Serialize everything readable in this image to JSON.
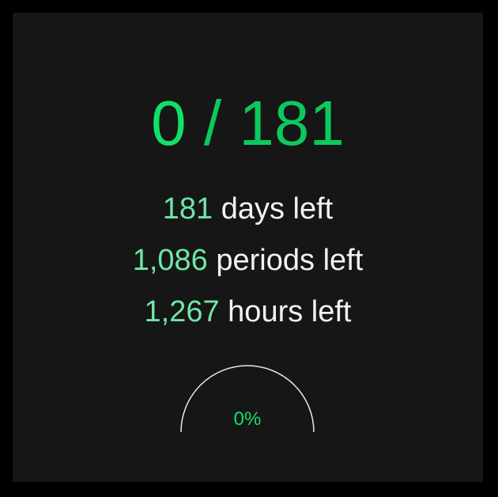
{
  "progress": {
    "completed": "0",
    "separator": "/",
    "total": "181"
  },
  "stats": [
    {
      "value": "181",
      "label": "days left"
    },
    {
      "value": "1,086",
      "label": "periods left"
    },
    {
      "value": "1,267",
      "label": "hours left"
    }
  ],
  "gauge": {
    "percent_label": "0%",
    "fraction": 0
  },
  "colors": {
    "accent": "#12e06a",
    "accent_dark": "#0cc95e",
    "value_light": "#6fe6a8",
    "text": "#f2f2f2",
    "panel_bg": "#161616",
    "border": "#000000"
  }
}
